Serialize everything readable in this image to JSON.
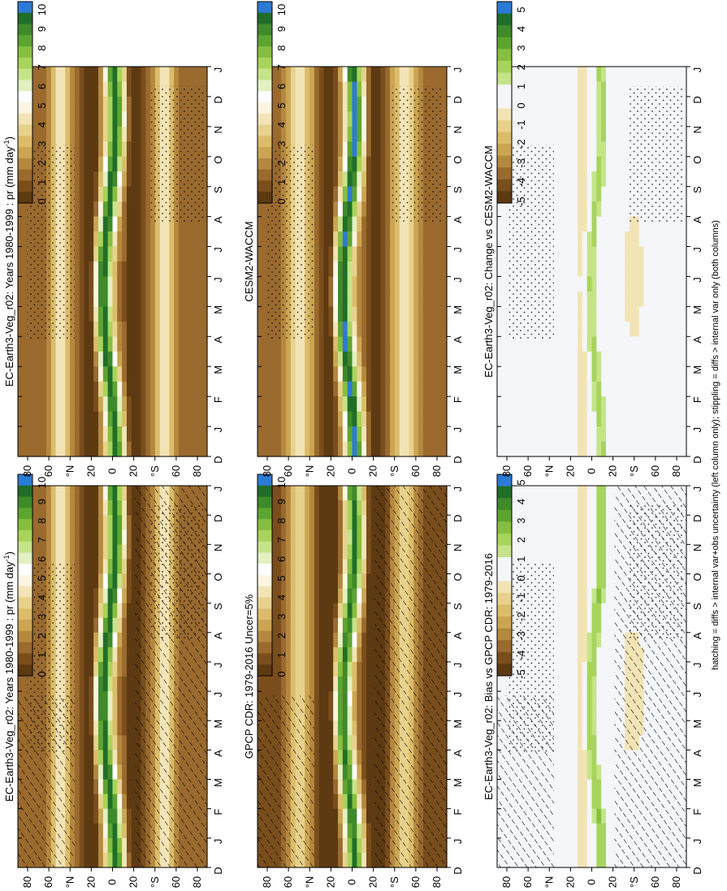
{
  "colors": {
    "precip_scale": [
      "#5d3a12",
      "#7a4e1c",
      "#9a6a2e",
      "#b4883f",
      "#cca553",
      "#dcbc6a",
      "#e8d18c",
      "#f3e4b6",
      "#fbf5e2",
      "#ffffff",
      "#e2f0c2",
      "#c5e48a",
      "#a8d45c",
      "#86bf3f",
      "#5da531",
      "#3f8a2a",
      "#206e28",
      "#2b7bd6"
    ],
    "diff_scale": [
      "#5d3a12",
      "#7a4e1c",
      "#9a6a2e",
      "#b4883f",
      "#cca553",
      "#dcbc6a",
      "#e8d18c",
      "#f3e4b6",
      "#f4f6fa",
      "#f4f6fa",
      "#c5e48a",
      "#a8d45c",
      "#86bf3f",
      "#5da531",
      "#3f8a2a",
      "#206e28",
      "#2b7bd6"
    ]
  },
  "footer_note": "hatching = diffs > internal var+obs uncertainty (left column only); stippling = diffs > internal var only (both columns)",
  "chart_data": [
    {
      "id": "model_climatology",
      "type": "heatmap",
      "title": "EC-Earth3-Veg_r02: Years 1980-1999 : pr (mm day",
      "title_sup": "-1",
      "title_end": ")",
      "x_ticklabels": [
        "D",
        "J",
        "F",
        "M",
        "A",
        "M",
        "J",
        "J",
        "A",
        "S",
        "O",
        "N",
        "D",
        "J"
      ],
      "y_ticklabels": [
        "80",
        "60",
        "°N",
        "20",
        "0",
        "20",
        "°S",
        "60",
        "80"
      ],
      "colorbar_labels": [
        "10",
        "9",
        "8",
        "7",
        "6",
        "5",
        "4",
        "3",
        "2",
        "1",
        "0"
      ],
      "zlim": [
        0,
        10
      ],
      "hatching": true,
      "stippling": true
    },
    {
      "id": "obs_climatology",
      "type": "heatmap",
      "title": "GPCP CDR: 1979-2016 Uncer=5%",
      "x_ticklabels": [
        "D",
        "J",
        "F",
        "M",
        "A",
        "M",
        "J",
        "J",
        "A",
        "S",
        "O",
        "N",
        "D",
        "J"
      ],
      "y_ticklabels": [
        "80",
        "60",
        "°N",
        "20",
        "0",
        "20",
        "°S",
        "60",
        "80"
      ],
      "colorbar_labels": [
        "10",
        "9",
        "8",
        "7",
        "6",
        "5",
        "4",
        "3",
        "2",
        "1",
        "0"
      ],
      "zlim": [
        0,
        10
      ],
      "hatching": true,
      "stippling": false
    },
    {
      "id": "bias",
      "type": "heatmap",
      "title": "EC-Earth3-Veg_r02: Bias vs GPCP CDR: 1979-2016",
      "x_ticklabels": [
        "D",
        "J",
        "F",
        "M",
        "A",
        "M",
        "J",
        "J",
        "A",
        "S",
        "O",
        "N",
        "D",
        "J"
      ],
      "y_ticklabels": [
        "80",
        "60",
        "°N",
        "20",
        "0",
        "20",
        "°S",
        "60",
        "80"
      ],
      "colorbar_labels": [
        "5",
        "4",
        "3",
        "2",
        "1",
        "0",
        "-1",
        "-2",
        "-3",
        "-4",
        "-5"
      ],
      "zlim": [
        -5,
        5
      ],
      "hatching": true,
      "stippling": true
    },
    {
      "id": "model_climatology_2",
      "type": "heatmap",
      "title": "EC-Earth3-Veg_r02: Years 1980-1999 : pr (mm day",
      "title_sup": "-1",
      "title_end": ")",
      "x_ticklabels": [
        "D",
        "J",
        "F",
        "M",
        "A",
        "M",
        "J",
        "J",
        "A",
        "S",
        "O",
        "N",
        "D",
        "J"
      ],
      "y_ticklabels": [
        "80",
        "60",
        "°N",
        "20",
        "0",
        "20",
        "°S",
        "60",
        "80"
      ],
      "colorbar_labels": [
        "10",
        "9",
        "8",
        "7",
        "6",
        "5",
        "4",
        "3",
        "2",
        "1",
        "0"
      ],
      "zlim": [
        0,
        10
      ],
      "hatching": false,
      "stippling": true
    },
    {
      "id": "comparison_model",
      "type": "heatmap",
      "title": "CESM2-WACCM",
      "x_ticklabels": [
        "D",
        "J",
        "F",
        "M",
        "A",
        "M",
        "J",
        "J",
        "A",
        "S",
        "O",
        "N",
        "D",
        "J"
      ],
      "y_ticklabels": [
        "80",
        "60",
        "°N",
        "20",
        "0",
        "20",
        "°S",
        "60",
        "80"
      ],
      "colorbar_labels": [
        "10",
        "9",
        "8",
        "7",
        "6",
        "5",
        "4",
        "3",
        "2",
        "1",
        "0"
      ],
      "zlim": [
        0,
        10
      ],
      "hatching": false,
      "stippling": true
    },
    {
      "id": "change",
      "type": "heatmap",
      "title": "EC-Earth3-Veg_r02: Change vs CESM2-WACCM",
      "x_ticklabels": [
        "D",
        "J",
        "F",
        "M",
        "A",
        "M",
        "J",
        "J",
        "A",
        "S",
        "O",
        "N",
        "D",
        "J"
      ],
      "y_ticklabels": [
        "80",
        "60",
        "°N",
        "20",
        "0",
        "20",
        "°S",
        "60",
        "80"
      ],
      "colorbar_labels": [
        "5",
        "4",
        "3",
        "2",
        "1",
        "0",
        "-1",
        "-2",
        "-3",
        "-4",
        "-5"
      ],
      "zlim": [
        -5,
        5
      ],
      "hatching": false,
      "stippling": true
    }
  ]
}
